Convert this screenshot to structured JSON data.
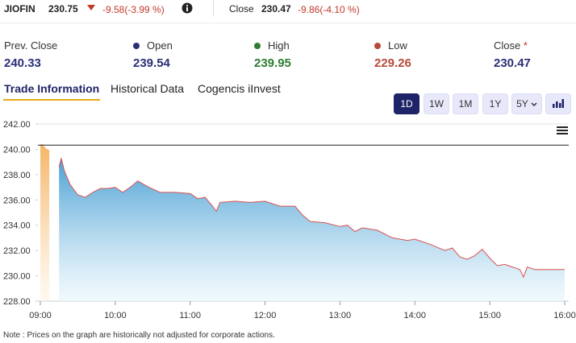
{
  "header": {
    "symbol": "JIOFIN",
    "price": "230.75",
    "change": "-9.58(-3.99 %)",
    "close_label": "Close",
    "close_price": "230.47",
    "close_change": "-9.86(-4.10 %)"
  },
  "stats": [
    {
      "label": "Prev. Close",
      "value": "240.33"
    },
    {
      "label": "Open",
      "value": "239.54"
    },
    {
      "label": "High",
      "value": "239.95"
    },
    {
      "label": "Low",
      "value": "229.26"
    },
    {
      "label": "Close",
      "flag": "*",
      "value": "230.47"
    }
  ],
  "tabs": [
    "Trade Information",
    "Historical Data",
    "Cogencis iInvest"
  ],
  "ranges": [
    "1D",
    "1W",
    "1M",
    "1Y",
    "5Y"
  ],
  "note": "Note : Prices on the graph are historically not adjusted for corporate actions.",
  "chart_data": {
    "type": "area",
    "series": [
      {
        "color": "#f5b565",
        "x": [
          9.0,
          9.02,
          9.05,
          9.08,
          9.12
        ],
        "values": [
          240.3,
          240.4,
          240.2,
          240.0,
          239.9
        ]
      },
      {
        "color": "#d9534f",
        "x": [
          9.25,
          9.28,
          9.32,
          9.4,
          9.5,
          9.6,
          9.7,
          9.8,
          9.9,
          10.0,
          10.1,
          10.2,
          10.3,
          10.45,
          10.6,
          10.8,
          11.0,
          11.1,
          11.2,
          11.3,
          11.35,
          11.4,
          11.6,
          11.8,
          12.0,
          12.2,
          12.4,
          12.5,
          12.6,
          12.8,
          13.0,
          13.1,
          13.2,
          13.3,
          13.5,
          13.7,
          13.9,
          14.0,
          14.2,
          14.4,
          14.5,
          14.6,
          14.7,
          14.8,
          14.9,
          15.0,
          15.1,
          15.2,
          15.3,
          15.4,
          15.45,
          15.5,
          15.6,
          16.0
        ],
        "values": [
          238.6,
          239.3,
          238.3,
          237.2,
          236.4,
          236.2,
          236.6,
          236.9,
          236.9,
          237.0,
          236.6,
          237.0,
          237.5,
          237.0,
          236.6,
          236.6,
          236.5,
          236.1,
          236.2,
          235.5,
          235.1,
          235.8,
          235.9,
          235.8,
          235.9,
          235.5,
          235.5,
          234.8,
          234.3,
          234.2,
          233.9,
          234.0,
          233.5,
          233.8,
          233.6,
          233.0,
          232.8,
          232.9,
          232.5,
          232.0,
          232.2,
          231.5,
          231.3,
          231.6,
          232.1,
          231.4,
          230.8,
          230.9,
          230.7,
          230.5,
          229.9,
          230.7,
          230.5,
          230.5
        ]
      }
    ],
    "reference_line": 240.33,
    "xlim": [
      8.968,
      16.054
    ],
    "ylim": [
      228,
      242
    ],
    "xticks": [
      {
        "value": 9,
        "label": "09:00"
      },
      {
        "value": 10,
        "label": "10:00"
      },
      {
        "value": 11,
        "label": "11:00"
      },
      {
        "value": 12,
        "label": "12:00"
      },
      {
        "value": 13,
        "label": "13:00"
      },
      {
        "value": 14,
        "label": "14:00"
      },
      {
        "value": 15,
        "label": "15:00"
      },
      {
        "value": 16,
        "label": "16:00"
      }
    ],
    "yticks": [
      {
        "value": 228,
        "label": "228.00"
      },
      {
        "value": 230,
        "label": "230.00"
      },
      {
        "value": 232,
        "label": "232.00"
      },
      {
        "value": 234,
        "label": "234.00"
      },
      {
        "value": 236,
        "label": "236.00"
      },
      {
        "value": 238,
        "label": "238.00"
      },
      {
        "value": 240,
        "label": "240.00"
      },
      {
        "value": 242,
        "label": "242.00"
      }
    ]
  }
}
